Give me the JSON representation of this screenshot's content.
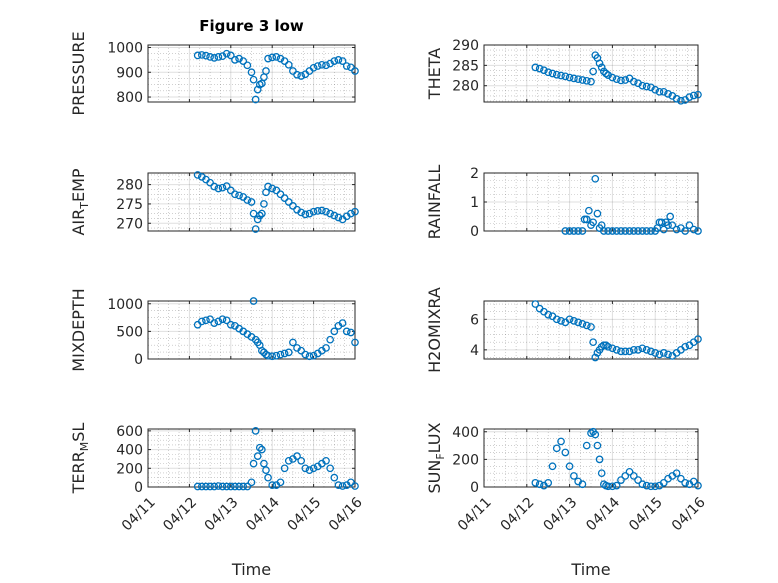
{
  "figure_title": "Figure 3 low",
  "colors": {
    "marker": "#0072BD",
    "axis": "#262626"
  },
  "chart_data": [
    {
      "id": "pressure",
      "type": "scatter",
      "title": "Figure 3 low",
      "ylabel": "PRESSURE",
      "ylabel_sub": [],
      "ylim": [
        780,
        1010
      ],
      "yticks": [
        800,
        900,
        1000
      ],
      "xtick_labels_visible": false,
      "xlabel": "",
      "x": [
        1.2,
        1.3,
        1.4,
        1.5,
        1.6,
        1.7,
        1.8,
        1.9,
        2.0,
        2.1,
        2.2,
        2.3,
        2.4,
        2.5,
        2.55,
        2.6,
        2.65,
        2.7,
        2.75,
        2.8,
        2.85,
        2.9,
        3.0,
        3.1,
        3.2,
        3.3,
        3.4,
        3.5,
        3.6,
        3.7,
        3.8,
        3.9,
        4.0,
        4.1,
        4.2,
        4.3,
        4.4,
        4.5,
        4.6,
        4.7,
        4.8,
        4.9,
        5.0
      ],
      "y": [
        968,
        970,
        967,
        962,
        958,
        962,
        965,
        975,
        968,
        950,
        955,
        945,
        928,
        900,
        870,
        790,
        830,
        850,
        855,
        880,
        905,
        955,
        960,
        962,
        955,
        945,
        930,
        905,
        890,
        885,
        892,
        905,
        918,
        925,
        930,
        928,
        935,
        945,
        950,
        945,
        925,
        920,
        905
      ]
    },
    {
      "id": "theta",
      "type": "scatter",
      "ylabel": "THETA",
      "ylabel_sub": [],
      "ylim": [
        276,
        290
      ],
      "yticks": [
        280,
        285,
        290
      ],
      "xtick_labels_visible": false,
      "xlabel": "",
      "x": [
        1.2,
        1.3,
        1.4,
        1.5,
        1.6,
        1.7,
        1.8,
        1.9,
        2.0,
        2.1,
        2.2,
        2.3,
        2.4,
        2.5,
        2.55,
        2.6,
        2.65,
        2.7,
        2.75,
        2.8,
        2.85,
        2.9,
        3.0,
        3.1,
        3.2,
        3.3,
        3.4,
        3.5,
        3.6,
        3.7,
        3.8,
        3.9,
        4.0,
        4.1,
        4.2,
        4.3,
        4.4,
        4.5,
        4.6,
        4.7,
        4.8,
        4.9,
        5.0
      ],
      "y": [
        284.5,
        284.2,
        283.8,
        283.3,
        283.0,
        282.7,
        282.5,
        282.3,
        282.0,
        281.8,
        281.6,
        281.4,
        281.2,
        281.0,
        283.5,
        287.5,
        286.8,
        285.5,
        284.5,
        283.5,
        283.0,
        282.6,
        282.0,
        281.6,
        281.3,
        281.4,
        281.8,
        281.0,
        280.6,
        280.0,
        279.8,
        279.6,
        279.0,
        278.5,
        278.5,
        278.0,
        277.5,
        276.8,
        276.3,
        276.5,
        277.2,
        277.6,
        277.8
      ]
    },
    {
      "id": "air_temp",
      "type": "scatter",
      "ylabel": "AIR",
      "ylabel_sub": [
        "T",
        "EMP"
      ],
      "ylim": [
        268,
        283
      ],
      "yticks": [
        270,
        275,
        280
      ],
      "xtick_labels_visible": false,
      "xlabel": "",
      "x": [
        1.2,
        1.3,
        1.4,
        1.5,
        1.6,
        1.7,
        1.8,
        1.9,
        2.0,
        2.1,
        2.2,
        2.3,
        2.4,
        2.5,
        2.55,
        2.6,
        2.65,
        2.7,
        2.75,
        2.8,
        2.85,
        2.9,
        3.0,
        3.1,
        3.2,
        3.3,
        3.4,
        3.5,
        3.6,
        3.7,
        3.8,
        3.9,
        4.0,
        4.1,
        4.2,
        4.3,
        4.4,
        4.5,
        4.6,
        4.7,
        4.8,
        4.9,
        5.0
      ],
      "y": [
        282.5,
        282.0,
        281.3,
        280.5,
        279.5,
        279.0,
        279.2,
        279.6,
        278.5,
        277.5,
        277.2,
        276.8,
        276.0,
        275.5,
        272.5,
        268.5,
        271.0,
        272.0,
        272.5,
        275.0,
        278.0,
        279.5,
        279.0,
        278.5,
        277.5,
        276.5,
        275.5,
        274.5,
        273.5,
        272.8,
        272.3,
        272.5,
        273.0,
        273.2,
        273.3,
        273.0,
        272.5,
        272.0,
        271.5,
        271.0,
        271.8,
        272.5,
        273.0
      ]
    },
    {
      "id": "rainfall",
      "type": "scatter",
      "ylabel": "RAINFALL",
      "ylabel_sub": [],
      "ylim": [
        0,
        2
      ],
      "yticks": [
        0,
        1,
        2
      ],
      "xtick_labels_visible": false,
      "xlabel": "",
      "x": [
        1.9,
        2.0,
        2.1,
        2.2,
        2.3,
        2.35,
        2.4,
        2.45,
        2.5,
        2.55,
        2.6,
        2.65,
        2.7,
        2.75,
        2.8,
        2.9,
        3.0,
        3.1,
        3.2,
        3.3,
        3.4,
        3.5,
        3.6,
        3.7,
        3.8,
        3.9,
        4.0,
        4.05,
        4.1,
        4.15,
        4.2,
        4.25,
        4.3,
        4.35,
        4.4,
        4.5,
        4.6,
        4.7,
        4.8,
        4.9,
        5.0
      ],
      "y": [
        0,
        0,
        0,
        0,
        0,
        0.4,
        0.4,
        0.7,
        0.2,
        0.3,
        1.8,
        0.6,
        0.1,
        0.2,
        0,
        0,
        0,
        0,
        0,
        0,
        0,
        0,
        0,
        0,
        0,
        0,
        0,
        0.1,
        0.3,
        0.3,
        0.05,
        0.3,
        0.2,
        0.5,
        0.2,
        0.05,
        0.1,
        0,
        0.2,
        0.05,
        0
      ]
    },
    {
      "id": "mixdepth",
      "type": "scatter",
      "ylabel": "MIXDEPTH",
      "ylabel_sub": [],
      "ylim": [
        0,
        1050
      ],
      "yticks": [
        0,
        500,
        1000
      ],
      "xtick_labels_visible": false,
      "xlabel": "",
      "x": [
        1.2,
        1.3,
        1.4,
        1.5,
        1.6,
        1.7,
        1.8,
        1.9,
        2.0,
        2.1,
        2.2,
        2.3,
        2.4,
        2.5,
        2.55,
        2.6,
        2.65,
        2.7,
        2.75,
        2.8,
        2.85,
        2.9,
        3.0,
        3.1,
        3.2,
        3.3,
        3.4,
        3.5,
        3.6,
        3.7,
        3.8,
        3.9,
        4.0,
        4.1,
        4.2,
        4.3,
        4.4,
        4.5,
        4.6,
        4.7,
        4.8,
        4.9,
        5.0
      ],
      "y": [
        620,
        680,
        700,
        720,
        650,
        680,
        720,
        700,
        620,
        600,
        550,
        500,
        450,
        400,
        1050,
        350,
        300,
        250,
        150,
        120,
        80,
        60,
        50,
        60,
        80,
        100,
        120,
        300,
        200,
        150,
        80,
        50,
        60,
        100,
        150,
        200,
        350,
        500,
        600,
        650,
        500,
        480,
        300
      ]
    },
    {
      "id": "h2omixra",
      "type": "scatter",
      "ylabel": "H2OMIXRA",
      "ylabel_sub": [],
      "ylim": [
        3.4,
        7.2
      ],
      "yticks": [
        4,
        6
      ],
      "xtick_labels_visible": false,
      "xlabel": "",
      "x": [
        1.2,
        1.3,
        1.4,
        1.5,
        1.6,
        1.7,
        1.8,
        1.9,
        2.0,
        2.1,
        2.2,
        2.3,
        2.4,
        2.5,
        2.55,
        2.6,
        2.65,
        2.7,
        2.75,
        2.8,
        2.85,
        2.9,
        3.0,
        3.1,
        3.2,
        3.3,
        3.4,
        3.5,
        3.6,
        3.7,
        3.8,
        3.9,
        4.0,
        4.1,
        4.2,
        4.3,
        4.4,
        4.5,
        4.6,
        4.7,
        4.8,
        4.9,
        5.0
      ],
      "y": [
        7.0,
        6.7,
        6.5,
        6.3,
        6.2,
        6.0,
        5.9,
        5.8,
        6.0,
        5.9,
        5.8,
        5.7,
        5.6,
        5.5,
        4.5,
        3.5,
        3.8,
        4.0,
        4.2,
        4.3,
        4.3,
        4.2,
        4.1,
        4.0,
        3.9,
        3.9,
        3.9,
        4.0,
        4.0,
        4.1,
        4.0,
        3.9,
        3.8,
        3.7,
        3.8,
        3.7,
        3.6,
        3.8,
        4.0,
        4.2,
        4.3,
        4.5,
        4.7
      ]
    },
    {
      "id": "terr_msl",
      "type": "scatter",
      "ylabel": "TERR",
      "ylabel_sub": [
        "M",
        "SL"
      ],
      "ylim": [
        0,
        620
      ],
      "yticks": [
        0,
        200,
        400,
        600
      ],
      "xtick_labels_visible": true,
      "xlabel": "Time",
      "x": [
        1.2,
        1.3,
        1.4,
        1.5,
        1.6,
        1.7,
        1.8,
        1.9,
        2.0,
        2.1,
        2.2,
        2.3,
        2.4,
        2.5,
        2.55,
        2.6,
        2.65,
        2.7,
        2.75,
        2.8,
        2.85,
        2.9,
        3.0,
        3.1,
        3.2,
        3.3,
        3.4,
        3.5,
        3.6,
        3.7,
        3.8,
        3.9,
        4.0,
        4.1,
        4.2,
        4.3,
        4.4,
        4.5,
        4.6,
        4.7,
        4.8,
        4.9,
        5.0
      ],
      "y": [
        5,
        5,
        5,
        5,
        5,
        10,
        5,
        5,
        5,
        5,
        5,
        5,
        5,
        50,
        250,
        600,
        330,
        420,
        400,
        250,
        180,
        100,
        20,
        20,
        50,
        200,
        280,
        300,
        330,
        280,
        200,
        180,
        200,
        220,
        250,
        280,
        200,
        100,
        20,
        10,
        20,
        50,
        10
      ]
    },
    {
      "id": "sun_flux",
      "type": "scatter",
      "ylabel": "SUN",
      "ylabel_sub": [
        "F",
        "LUX"
      ],
      "ylim": [
        0,
        420
      ],
      "yticks": [
        0,
        200,
        400
      ],
      "xtick_labels_visible": true,
      "xlabel": "Time",
      "x": [
        1.2,
        1.3,
        1.4,
        1.5,
        1.6,
        1.7,
        1.8,
        1.9,
        2.0,
        2.1,
        2.2,
        2.3,
        2.4,
        2.5,
        2.55,
        2.6,
        2.65,
        2.7,
        2.75,
        2.8,
        2.85,
        2.9,
        3.0,
        3.1,
        3.2,
        3.3,
        3.4,
        3.5,
        3.6,
        3.7,
        3.8,
        3.9,
        4.0,
        4.1,
        4.2,
        4.3,
        4.4,
        4.5,
        4.6,
        4.7,
        4.8,
        4.9,
        5.0
      ],
      "y": [
        30,
        20,
        10,
        30,
        150,
        280,
        330,
        250,
        150,
        80,
        40,
        20,
        300,
        390,
        400,
        380,
        300,
        200,
        100,
        20,
        10,
        5,
        5,
        10,
        50,
        80,
        110,
        80,
        50,
        20,
        10,
        5,
        5,
        10,
        30,
        60,
        80,
        100,
        60,
        30,
        20,
        40,
        10
      ]
    }
  ],
  "x_axis": {
    "min": 0,
    "max": 5,
    "ticks": [
      0,
      1,
      2,
      3,
      4,
      5
    ],
    "tick_labels": [
      "04/11",
      "04/12",
      "04/13",
      "04/14",
      "04/15",
      "04/16"
    ]
  }
}
